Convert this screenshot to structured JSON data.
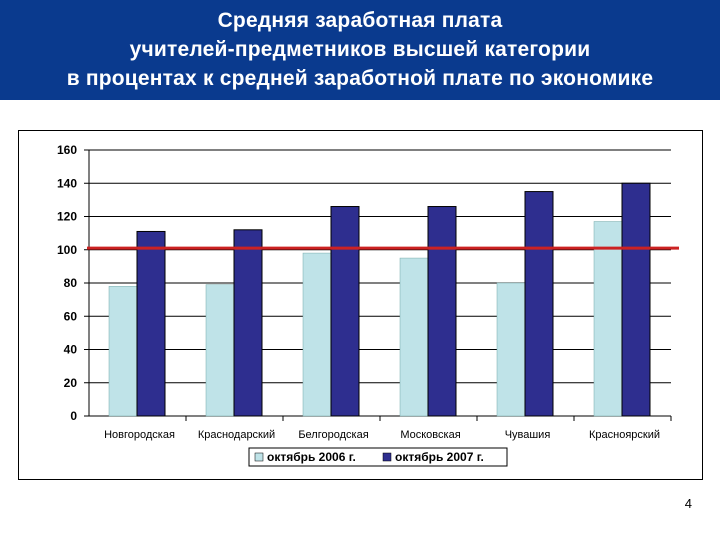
{
  "slide": {
    "title_lines": [
      "Средняя заработная плата",
      "учителей-предметников высшей категории",
      "в процентах к средней заработной плате по экономике"
    ],
    "page_number": "4",
    "colors": {
      "title_background": "#0a3a8e",
      "series_2006": "#bfe3e8",
      "series_2007": "#2e2e8f",
      "reference_line": "#cc2222"
    }
  },
  "chart_data": {
    "type": "bar",
    "categories": [
      "Новгородская",
      "Краснодарский",
      "Белгородская",
      "Московская",
      "Чувашия",
      "Красноярский"
    ],
    "series": [
      {
        "name": "октябрь 2006 г.",
        "values": [
          78,
          79,
          98,
          95,
          80,
          117
        ],
        "color": "#bfe3e8"
      },
      {
        "name": "октябрь 2007 г.",
        "values": [
          111,
          112,
          126,
          126,
          135,
          140
        ],
        "color": "#2e2e8f"
      }
    ],
    "reference_line": {
      "value": 101,
      "color": "#cc2222"
    },
    "ylim": [
      0,
      160
    ],
    "yticks": [
      0,
      20,
      40,
      60,
      80,
      100,
      120,
      140,
      160
    ],
    "grid": true,
    "legend_position": "bottom"
  }
}
